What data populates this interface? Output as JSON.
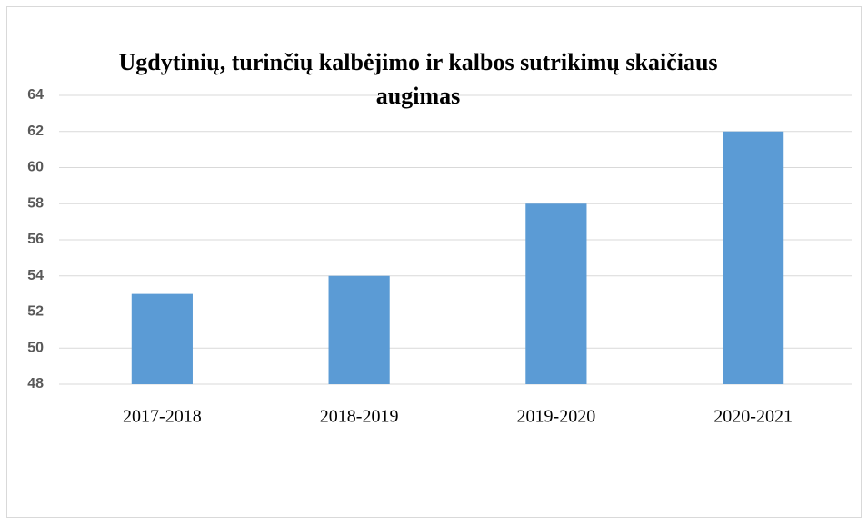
{
  "chart_data": {
    "type": "bar",
    "title": "Ugdytinių, turinčių kalbėjimo ir kalbos sutrikimų skaičiaus augimas",
    "categories": [
      "2017-2018",
      "2018-2019",
      "2019-2020",
      "2020-2021"
    ],
    "values": [
      53,
      54,
      58,
      62
    ],
    "color": "#5b9bd5",
    "ylim": [
      48,
      64
    ],
    "yticks": [
      48,
      50,
      52,
      54,
      56,
      58,
      60,
      62,
      64
    ],
    "grid": true
  }
}
